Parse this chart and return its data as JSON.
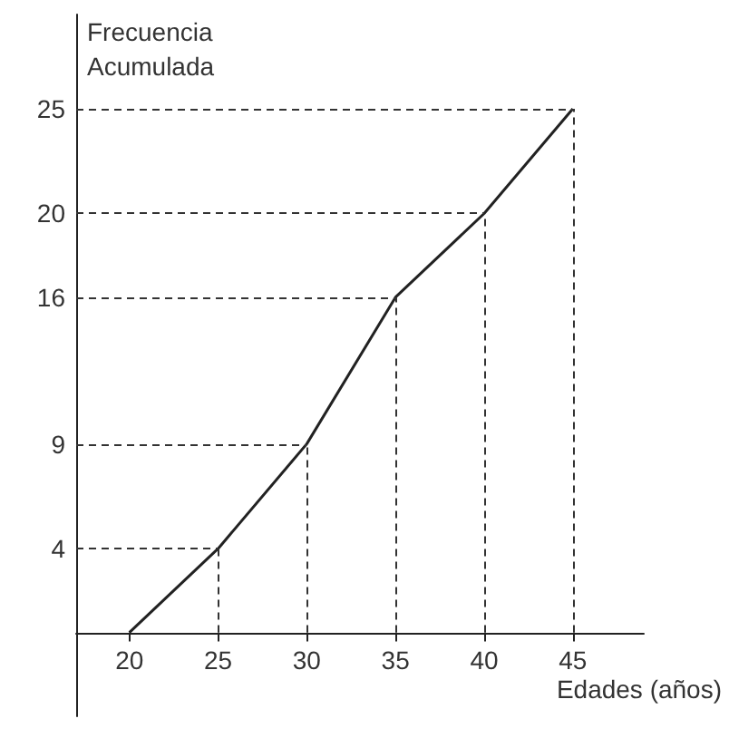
{
  "chart_data": {
    "type": "line",
    "ylabel": "Frecuencia\nAcumulada",
    "xlabel": "Edades (años)",
    "x": [
      20,
      25,
      30,
      35,
      40,
      45
    ],
    "series": [
      {
        "color": "#222222",
        "values": [
          0,
          4,
          9,
          16,
          20,
          25
        ]
      }
    ],
    "xlim": [
      17,
      49
    ],
    "xticks": [
      20,
      25,
      30,
      35,
      40,
      45
    ],
    "ylim": [
      -4,
      29.5
    ],
    "yticks": [
      4,
      9,
      16,
      20,
      25
    ],
    "ref_lines": [
      {
        "axis": "x",
        "value": 25,
        "color": "#333333",
        "line_style": "dashed"
      },
      {
        "axis": "x",
        "value": 30,
        "color": "#333333",
        "line_style": "dashed"
      },
      {
        "axis": "x",
        "value": 35,
        "color": "#333333",
        "line_style": "dashed"
      },
      {
        "axis": "x",
        "value": 40,
        "color": "#333333",
        "line_style": "dashed"
      },
      {
        "axis": "x",
        "value": 45,
        "color": "#333333",
        "line_style": "dashed"
      },
      {
        "axis": "y",
        "value": 4,
        "color": "#333333",
        "line_style": "dashed"
      },
      {
        "axis": "y",
        "value": 9,
        "color": "#333333",
        "line_style": "dashed"
      },
      {
        "axis": "y",
        "value": 16,
        "color": "#333333",
        "line_style": "dashed"
      },
      {
        "axis": "y",
        "value": 20,
        "color": "#333333",
        "line_style": "dashed"
      },
      {
        "axis": "y",
        "value": 25,
        "color": "#333333",
        "line_style": "dashed"
      }
    ],
    "grid": false,
    "marker": "none",
    "line_style": "solid"
  }
}
